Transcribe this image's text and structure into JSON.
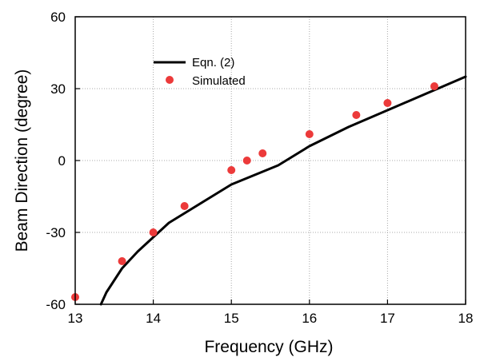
{
  "chart_data": {
    "type": "line",
    "xlabel": "Frequency (GHz)",
    "ylabel": "Beam Direction (degree)",
    "xlim": [
      13,
      18
    ],
    "ylim": [
      -60,
      60
    ],
    "xticks": [
      13,
      14,
      15,
      16,
      17,
      18
    ],
    "yticks": [
      -60,
      -30,
      0,
      30,
      60
    ],
    "grid": true,
    "legend_position": "top-left",
    "series": [
      {
        "name": "Eqn. (2)",
        "kind": "line",
        "color": "#000000",
        "x": [
          13.33,
          13.4,
          13.5,
          13.6,
          13.8,
          14.0,
          14.2,
          14.5,
          14.8,
          15.0,
          15.3,
          15.6,
          16.0,
          16.5,
          17.0,
          17.5,
          18.0
        ],
        "y": [
          -60,
          -55,
          -50,
          -45,
          -38,
          -32,
          -26,
          -20,
          -14,
          -10,
          -6,
          -2,
          6,
          14,
          21,
          28,
          35
        ]
      },
      {
        "name": "Simulated",
        "kind": "scatter",
        "color": "#ec3a3a",
        "x": [
          13.0,
          13.6,
          14.0,
          14.4,
          15.0,
          15.2,
          15.4,
          16.0,
          16.6,
          17.0,
          17.6
        ],
        "y": [
          -57,
          -42,
          -30,
          -19,
          -4,
          0,
          3,
          11,
          19,
          24,
          31
        ]
      }
    ]
  }
}
